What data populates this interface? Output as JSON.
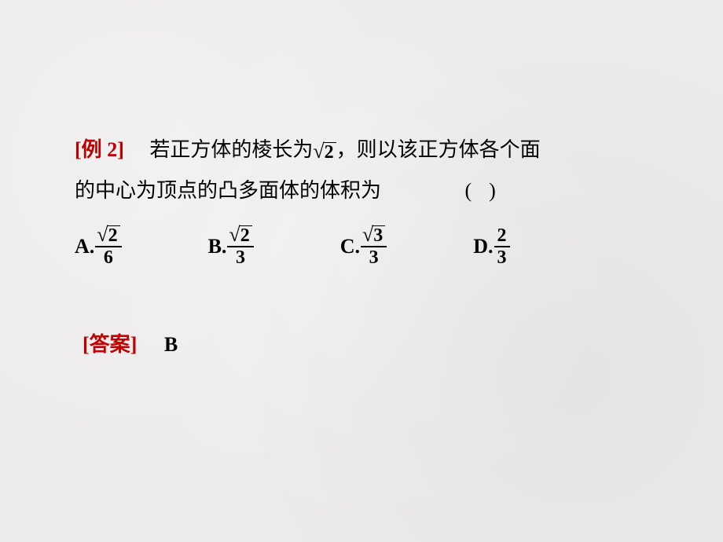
{
  "example": {
    "label_prefix": "[",
    "label_cn": "例",
    "label_num": " 2]",
    "line1_a": "若正方体的棱长为",
    "sqrt_val": "2",
    "line1_b": "，则以该正方体各个面",
    "line2": "的中心为顶点的凸多面体的体积为",
    "paren": "()"
  },
  "options": {
    "A": {
      "label": "A.",
      "num_sqrt": "2",
      "den": "6"
    },
    "B": {
      "label": "B.",
      "num_sqrt": "2",
      "den": "3"
    },
    "C": {
      "label": "C.",
      "num_sqrt": "3",
      "den": "3"
    },
    "D": {
      "label": "D.",
      "num": "2",
      "den": "3"
    }
  },
  "answer": {
    "label_prefix": "[",
    "label_cn": "答案",
    "label_suffix": "]",
    "value": "B"
  },
  "colors": {
    "accent": "#c00000",
    "text": "#000000",
    "background": "#eceaeb"
  }
}
